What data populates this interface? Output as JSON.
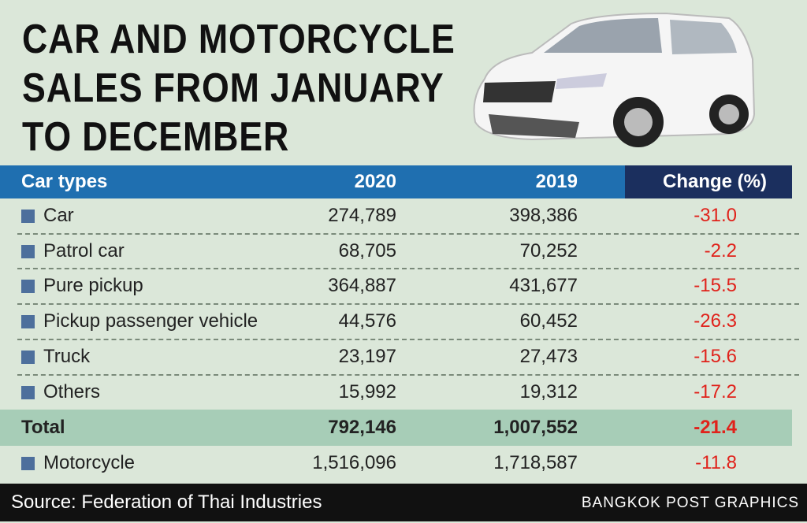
{
  "header": {
    "title_lines": [
      "CAR AND MOTORCYCLE",
      "SALES FROM JANUARY",
      "TO DECEMBER"
    ]
  },
  "table": {
    "columns": [
      "Car types",
      "2020",
      "2019",
      "Change (%)"
    ],
    "rows": [
      [
        "Car",
        "274,789",
        "398,386",
        "-31.0"
      ],
      [
        "Patrol car",
        "68,705",
        "70,252",
        "-2.2"
      ],
      [
        "Pure pickup",
        "364,887",
        "431,677",
        "-15.5"
      ],
      [
        "Pickup passenger vehicle",
        "44,576",
        "60,452",
        "-26.3"
      ],
      [
        "Truck",
        "23,197",
        "27,473",
        "-15.6"
      ],
      [
        "Others",
        "15,992",
        "19,312",
        "-17.2"
      ]
    ],
    "total": [
      "Total",
      "792,146",
      "1,007,552",
      "-21.4"
    ],
    "after_total": [
      [
        "Motorcycle",
        "1,516,096",
        "1,718,587",
        "-11.8"
      ]
    ]
  },
  "footer": {
    "source": "Source: Federation of Thai Industries",
    "credit": "BANGKOK POST GRAPHICS"
  }
}
